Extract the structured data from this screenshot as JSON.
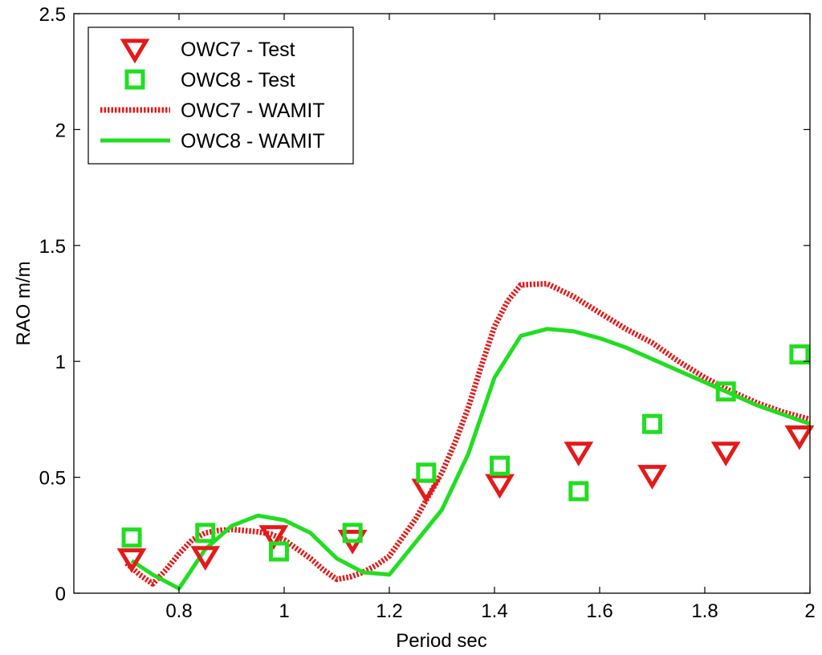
{
  "chart_data": {
    "type": "scatter",
    "title": "",
    "xlabel": "Period sec",
    "ylabel": "RAO m/m",
    "xlim": [
      0.6,
      2.0
    ],
    "ylim": [
      0,
      2.5
    ],
    "xticks": [
      0.8,
      1.0,
      1.2,
      1.4,
      1.6,
      1.8,
      2.0
    ],
    "xtick_labels": [
      "0.8",
      "1",
      "1.2",
      "1.4",
      "1.6",
      "1.8",
      "2"
    ],
    "yticks": [
      0,
      0.5,
      1.0,
      1.5,
      2.0,
      2.5
    ],
    "ytick_labels": [
      "0",
      "0.5",
      "1",
      "1.5",
      "2",
      "2.5"
    ],
    "grid": false,
    "legend_position": "top-left",
    "series": [
      {
        "name": "OWC7 - Test",
        "kind": "markers",
        "marker": "triangle-down",
        "color": "#e41a1a",
        "x": [
          0.71,
          0.85,
          0.98,
          1.13,
          1.27,
          1.41,
          1.56,
          1.7,
          1.84,
          1.98
        ],
        "values": [
          0.15,
          0.16,
          0.25,
          0.23,
          0.45,
          0.47,
          0.61,
          0.51,
          0.61,
          0.68
        ]
      },
      {
        "name": "OWC8 - Test",
        "kind": "markers",
        "marker": "square",
        "color": "#22dd22",
        "x": [
          0.71,
          0.85,
          0.99,
          1.13,
          1.27,
          1.41,
          1.56,
          1.7,
          1.84,
          1.98
        ],
        "values": [
          0.24,
          0.26,
          0.18,
          0.26,
          0.52,
          0.55,
          0.44,
          0.73,
          0.87,
          1.03
        ]
      },
      {
        "name": "OWC7 - WAMIT",
        "kind": "line",
        "style": "dotted",
        "color": "#e41a1a",
        "x": [
          0.7,
          0.725,
          0.75,
          0.775,
          0.8,
          0.825,
          0.85,
          0.875,
          0.9,
          0.925,
          0.95,
          0.975,
          1.0,
          1.025,
          1.05,
          1.075,
          1.1,
          1.125,
          1.15,
          1.175,
          1.2,
          1.225,
          1.25,
          1.275,
          1.3,
          1.325,
          1.35,
          1.375,
          1.4,
          1.425,
          1.45,
          1.5,
          1.55,
          1.6,
          1.65,
          1.7,
          1.75,
          1.8,
          1.85,
          1.9,
          1.95,
          2.0
        ],
        "values": [
          0.13,
          0.08,
          0.04,
          0.1,
          0.17,
          0.23,
          0.26,
          0.27,
          0.275,
          0.27,
          0.265,
          0.255,
          0.23,
          0.19,
          0.15,
          0.1,
          0.06,
          0.07,
          0.09,
          0.12,
          0.16,
          0.24,
          0.32,
          0.42,
          0.52,
          0.65,
          0.8,
          0.98,
          1.15,
          1.26,
          1.33,
          1.335,
          1.28,
          1.21,
          1.14,
          1.08,
          1.0,
          0.93,
          0.87,
          0.82,
          0.78,
          0.75
        ]
      },
      {
        "name": "OWC8 - WAMIT",
        "kind": "line",
        "style": "solid",
        "color": "#22dd22",
        "x": [
          0.71,
          0.75,
          0.8,
          0.85,
          0.9,
          0.95,
          1.0,
          1.05,
          1.1,
          1.15,
          1.2,
          1.25,
          1.3,
          1.35,
          1.4,
          1.45,
          1.5,
          1.55,
          1.6,
          1.65,
          1.7,
          1.75,
          1.8,
          1.85,
          1.9,
          1.95,
          2.0
        ],
        "values": [
          0.14,
          0.08,
          0.02,
          0.19,
          0.29,
          0.335,
          0.315,
          0.26,
          0.15,
          0.09,
          0.08,
          0.22,
          0.36,
          0.6,
          0.93,
          1.11,
          1.14,
          1.13,
          1.1,
          1.06,
          1.01,
          0.96,
          0.91,
          0.86,
          0.81,
          0.77,
          0.73
        ]
      }
    ]
  }
}
